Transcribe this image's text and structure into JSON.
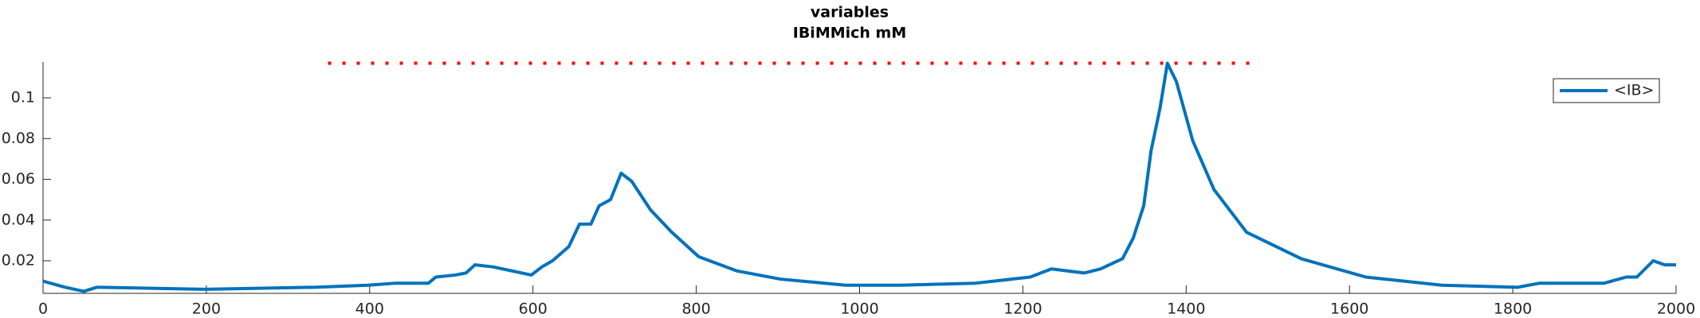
{
  "chart_data": {
    "type": "line",
    "title": "variables",
    "subtitle": "IBiMMich mM",
    "xlim": [
      0,
      2000
    ],
    "xticks": [
      0,
      200,
      400,
      600,
      800,
      1000,
      1200,
      1400,
      1600,
      1800,
      2000
    ],
    "ylim": [
      0.004,
      0.1176
    ],
    "yticks": [
      0.02,
      0.04,
      0.06,
      0.08,
      0.1
    ],
    "legend": "upper right",
    "series": [
      {
        "name": "<IB>",
        "color": "#0072bd",
        "x": [
          0,
          27,
          50,
          66,
          199,
          332,
          398,
          432,
          472,
          481,
          505,
          518,
          529,
          551,
          598,
          611,
          624,
          644,
          657,
          671,
          681,
          695,
          708,
          721,
          744,
          770,
          803,
          850,
          903,
          983,
          1049,
          1142,
          1209,
          1235,
          1275,
          1295,
          1322,
          1335,
          1348,
          1357,
          1368,
          1377,
          1388,
          1408,
          1434,
          1474,
          1541,
          1620,
          1713,
          1806,
          1833,
          1912,
          1939,
          1952,
          1972,
          1986,
          2000
        ],
        "values": [
          0.01,
          0.007,
          0.005,
          0.007,
          0.006,
          0.007,
          0.008,
          0.009,
          0.009,
          0.012,
          0.013,
          0.014,
          0.018,
          0.017,
          0.013,
          0.017,
          0.02,
          0.027,
          0.038,
          0.038,
          0.047,
          0.05,
          0.063,
          0.059,
          0.045,
          0.034,
          0.022,
          0.015,
          0.011,
          0.008,
          0.008,
          0.009,
          0.012,
          0.016,
          0.014,
          0.016,
          0.021,
          0.031,
          0.047,
          0.074,
          0.095,
          0.117,
          0.108,
          0.079,
          0.055,
          0.034,
          0.021,
          0.012,
          0.008,
          0.007,
          0.009,
          0.009,
          0.012,
          0.012,
          0.02,
          0.018,
          0.018
        ]
      }
    ],
    "reference_line": {
      "color": "#ff0000",
      "style": "dotted",
      "x": [
        349,
        1481
      ],
      "values": [
        0.117,
        0.117
      ]
    }
  }
}
